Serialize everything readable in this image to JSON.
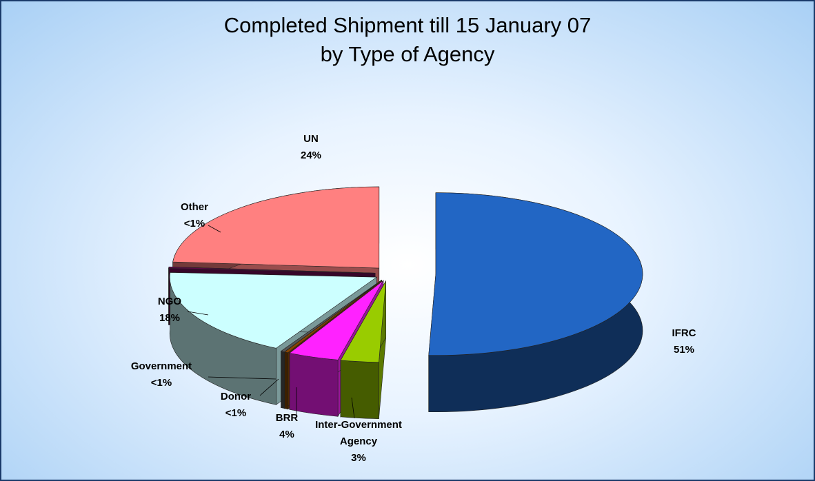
{
  "chart_data": {
    "type": "pie",
    "title": [
      "Completed Shipment till 15 January 07",
      "by Type of Agency"
    ],
    "categories": [
      "IFRC",
      "Inter-Government Agency",
      "BRR",
      "Donor",
      "Government",
      "NGO",
      "Other",
      "UN"
    ],
    "values": [
      51,
      3,
      4,
      0.3,
      0.3,
      18,
      0.3,
      24
    ],
    "value_labels": [
      "51%",
      "3%",
      "4%",
      "<1%",
      "<1%",
      "18%",
      "<1%",
      "24%"
    ],
    "colors": [
      "#2266c4",
      "#99cc00",
      "#ff22ff",
      "#884400",
      "#555555",
      "#ccffff",
      "#5a0a44",
      "#ff8080"
    ]
  }
}
